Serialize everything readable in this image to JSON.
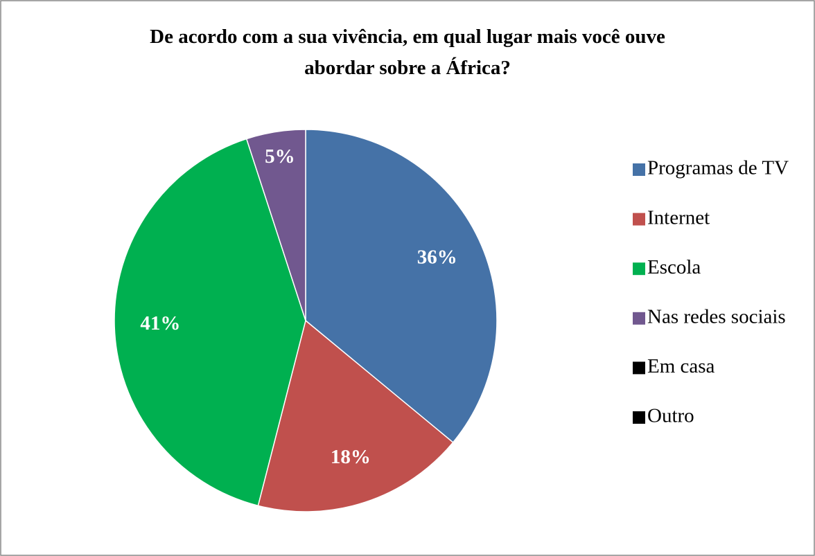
{
  "chart_data": {
    "type": "pie",
    "title": "De acordo com a sua vivência, em qual lugar mais você ouve abordar sobre a África?",
    "categories": [
      "Programas de TV",
      "Internet",
      "Escola",
      "Nas redes sociais",
      "Em casa",
      "Outro"
    ],
    "values": [
      36,
      18,
      41,
      5,
      0,
      0
    ],
    "value_labels": [
      "36%",
      "18%",
      "41%",
      "5%",
      null,
      null
    ],
    "colors": [
      "#4572a7",
      "#c0504d",
      "#00b050",
      "#71588f",
      "#000000",
      "#000000"
    ],
    "legend": "right"
  }
}
